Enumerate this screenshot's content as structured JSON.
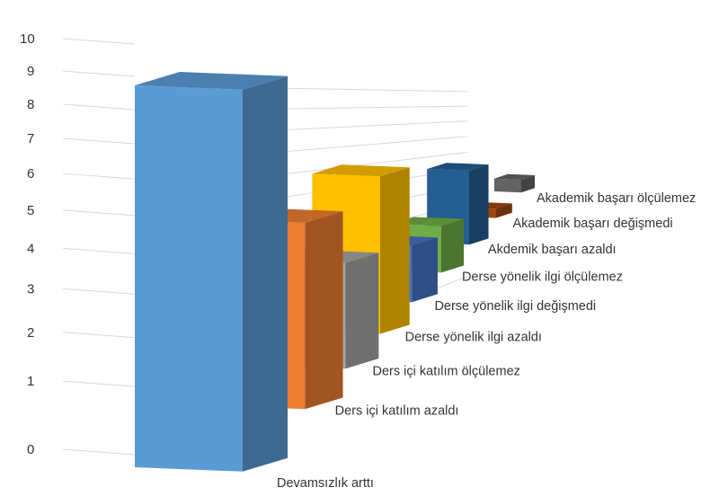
{
  "chart_data": {
    "type": "bar",
    "title": "",
    "xlabel": "",
    "ylabel": "",
    "ylim": [
      0,
      10
    ],
    "yticks": [
      "0",
      "1",
      "2",
      "3",
      "4",
      "5",
      "6",
      "7",
      "8",
      "9",
      "10"
    ],
    "legend": "none",
    "grid": true,
    "categories": [
      "Devamsızlık arttı",
      "Ders içi katılım azaldı",
      "Ders içi katılım ölçülemez",
      "Derse yönelik ilgi azaldı",
      "Derse yönelik ilgi değişmedi",
      "Derse yönelik ilgi ölçülemez",
      "Akdemik başarı azaldı",
      "Akademik başarı değişmedi",
      "Akademik başarı ölçülemez"
    ],
    "values": [
      10,
      6,
      4,
      7,
      3,
      3,
      6,
      1,
      2
    ],
    "colors": [
      "#5B9BD5",
      "#ED7D31",
      "#A5A5A5",
      "#FFC000",
      "#4472C4",
      "#70AD47",
      "#255E91",
      "#9E480E",
      "#636363"
    ]
  }
}
